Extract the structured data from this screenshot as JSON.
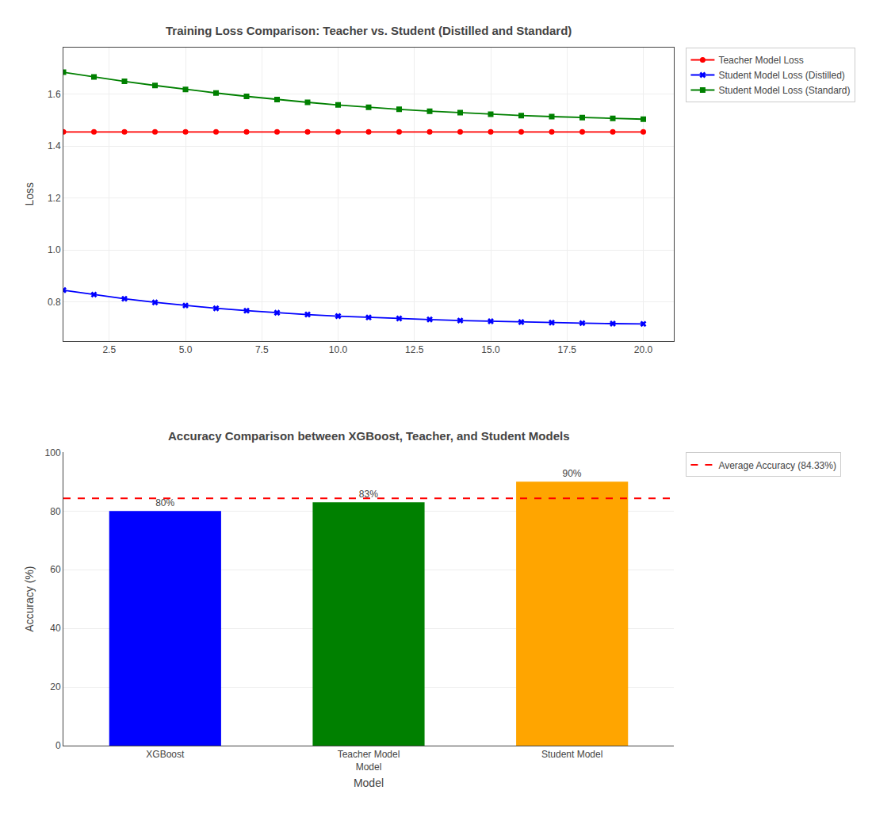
{
  "chart_data": [
    {
      "type": "line",
      "title": "Training Loss Comparison: Teacher vs. Student (Distilled and Standard)",
      "ylabel": "Loss",
      "x": [
        1,
        2,
        3,
        4,
        5,
        6,
        7,
        8,
        9,
        10,
        11,
        12,
        13,
        14,
        15,
        16,
        17,
        18,
        19,
        20
      ],
      "series": [
        {
          "name": "Teacher Model Loss",
          "color": "#ff0000",
          "marker": "circle",
          "line_style": "solid",
          "values": [
            1.455,
            1.455,
            1.455,
            1.455,
            1.455,
            1.455,
            1.455,
            1.455,
            1.455,
            1.455,
            1.455,
            1.455,
            1.455,
            1.455,
            1.455,
            1.455,
            1.455,
            1.455,
            1.455,
            1.455
          ]
        },
        {
          "name": "Student Model Loss (Distilled)",
          "color": "#0000ff",
          "marker": "x",
          "line_style": "solid",
          "values": [
            0.845,
            0.828,
            0.812,
            0.798,
            0.786,
            0.775,
            0.766,
            0.758,
            0.751,
            0.745,
            0.74,
            0.736,
            0.732,
            0.728,
            0.725,
            0.722,
            0.72,
            0.718,
            0.716,
            0.715
          ]
        },
        {
          "name": "Student Model Loss (Standard)",
          "color": "#008000",
          "marker": "square",
          "line_style": "solid",
          "values": [
            1.685,
            1.667,
            1.65,
            1.634,
            1.619,
            1.605,
            1.592,
            1.58,
            1.569,
            1.559,
            1.55,
            1.542,
            1.535,
            1.529,
            1.523,
            1.518,
            1.514,
            1.51,
            1.507,
            1.504
          ]
        }
      ],
      "xlim": [
        1,
        21
      ],
      "xticks": [
        2.5,
        {
          "value": 5,
          "label": "5.0"
        },
        7.5,
        {
          "value": 10,
          "label": "10.0"
        },
        12.5,
        {
          "value": 15,
          "label": "15.0"
        },
        17.5,
        {
          "value": 20,
          "label": "20.0"
        }
      ],
      "ylim": [
        0.65,
        1.78
      ],
      "yticks": [
        0.8,
        {
          "value": 1,
          "label": "1.0"
        },
        1.2,
        1.4,
        1.6
      ],
      "grid": true,
      "legend": "upper right"
    },
    {
      "type": "bar",
      "title": "Accuracy Comparison between XGBoost, Teacher, and Student Models",
      "xlabel": "Model",
      "ylabel": "Accuracy (%)",
      "categories": [
        "XGBoost",
        "Teacher Model\nModel",
        "Student Model"
      ],
      "values": [
        80,
        83,
        90
      ],
      "value_labels": [
        "80%",
        "83%",
        "90%"
      ],
      "data_labels": true,
      "colors": [
        "#0000ff",
        "#008000",
        "#ffa500"
      ],
      "reference_line": {
        "name": "Average Accuracy (84.33%)",
        "value": 84.33,
        "color": "#ff0000",
        "line_style": "dashed"
      },
      "ylim": [
        0,
        100
      ],
      "yticks": [
        0,
        20,
        40,
        60,
        80,
        100
      ],
      "grid": "y",
      "legend": "upper right"
    }
  ]
}
